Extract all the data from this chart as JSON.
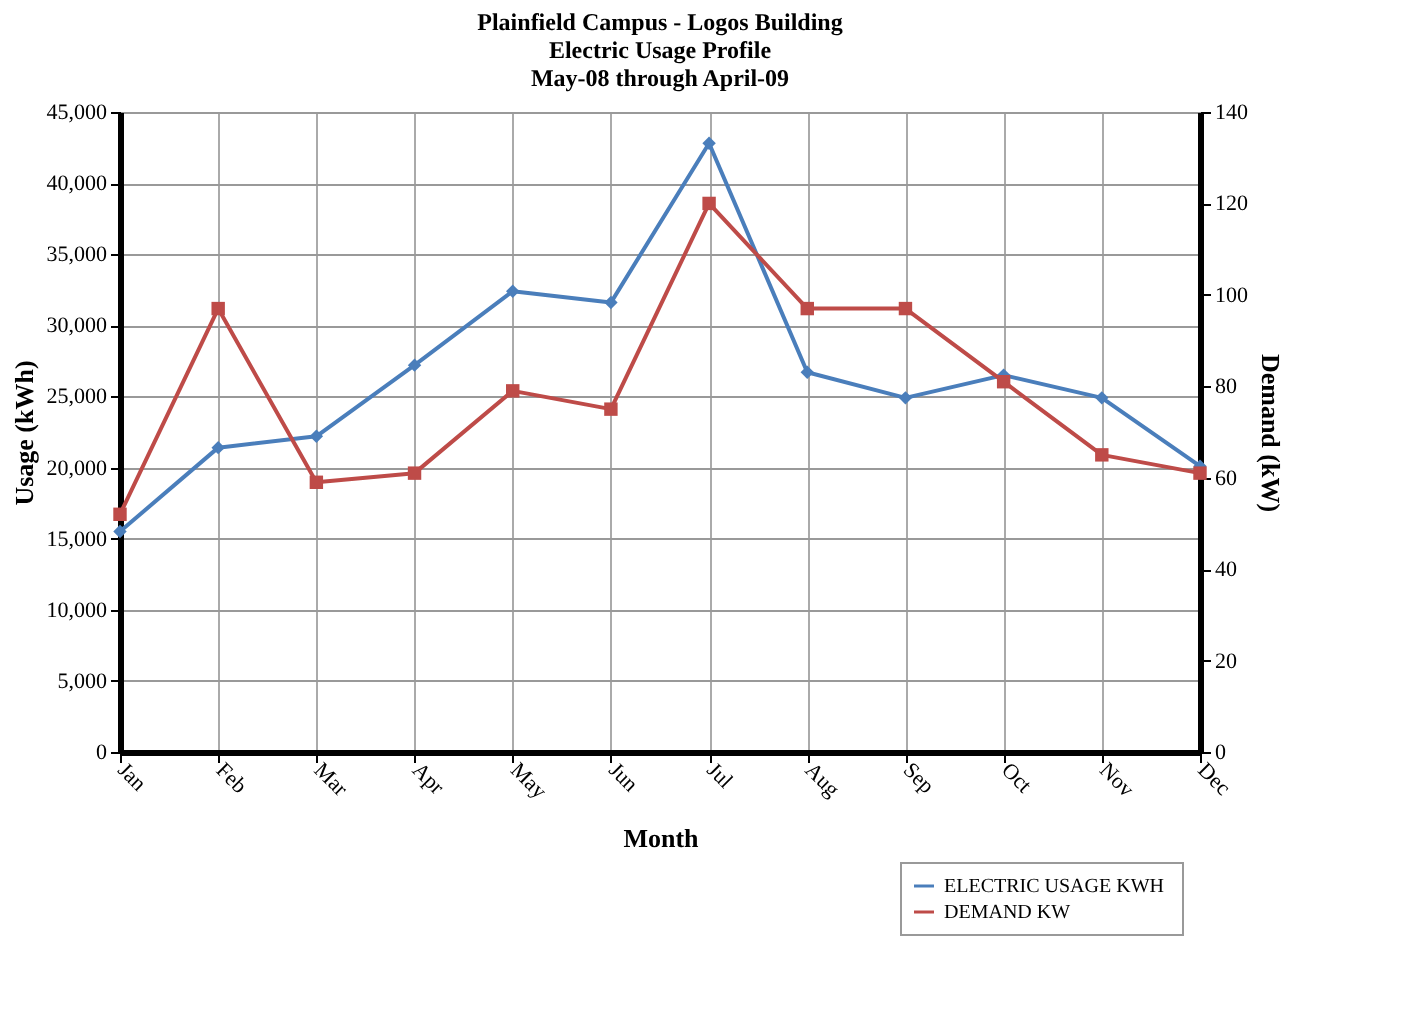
{
  "chart_data": {
    "type": "line",
    "title": [
      "Plainfield Campus - Logos Building",
      "Electric Usage Profile",
      "May-08 through April-09"
    ],
    "xlabel": "Month",
    "ylabel": "Usage (kWh)",
    "y2label": "Demand (kW)",
    "categories": [
      "Jan",
      "Feb",
      "Mar",
      "Apr",
      "May",
      "Jun",
      "Jul",
      "Aug",
      "Sep",
      "Oct",
      "Nov",
      "Dec"
    ],
    "series": [
      {
        "name": "ELECTRIC  USAGE KWH",
        "color": "#4a7ebb",
        "marker": "diamond",
        "values": [
          15500,
          21400,
          22200,
          27200,
          32400,
          31600,
          42800,
          26700,
          24900,
          26500,
          24900,
          20100
        ]
      },
      {
        "name": "DEMAND KW",
        "color": "#be4b48",
        "marker": "square",
        "axis": "y2",
        "values": [
          52,
          97,
          59,
          61,
          79,
          75,
          120,
          97,
          97,
          81,
          65,
          61
        ]
      }
    ],
    "ylim": [
      0,
      45000
    ],
    "yticks": [
      0,
      {
        "value": 5000,
        "label": "5,000"
      },
      {
        "value": 10000,
        "label": "10,000"
      },
      {
        "value": 15000,
        "label": "15,000"
      },
      {
        "value": 20000,
        "label": "20,000"
      },
      {
        "value": 25000,
        "label": "25,000"
      },
      {
        "value": 30000,
        "label": "30,000"
      },
      {
        "value": 35000,
        "label": "35,000"
      },
      {
        "value": 40000,
        "label": "40,000"
      },
      {
        "value": 45000,
        "label": "45,000"
      }
    ],
    "y2lim": [
      0,
      140
    ],
    "y2ticks": [
      0,
      20,
      40,
      60,
      80,
      100,
      120,
      140
    ],
    "grid": true,
    "legend": "bottom right",
    "line_style": "solid"
  }
}
